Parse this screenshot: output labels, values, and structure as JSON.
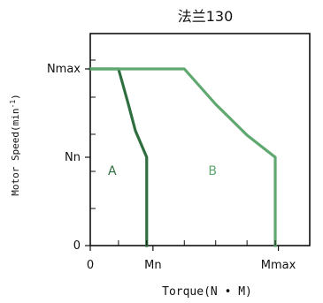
{
  "chart_data": {
    "type": "line",
    "title": "法兰130",
    "xlabel": "Torque(N • M)",
    "ylabel_parts": {
      "prefix": "Motor Speed(min",
      "superscript": "-1",
      "suffix": ")"
    },
    "x_ticks": [
      {
        "value": 0,
        "label": "0"
      },
      {
        "value": 1,
        "label": "Mn"
      },
      {
        "value": 3,
        "label": "Mmax"
      }
    ],
    "y_ticks": [
      {
        "value": 0,
        "label": "0"
      },
      {
        "value": 1,
        "label": "Nn"
      },
      {
        "value": 2,
        "label": "Nmax"
      }
    ],
    "xlim": [
      0,
      3.5
    ],
    "ylim": [
      0,
      2.4
    ],
    "series": [
      {
        "name": "A",
        "color": "#2f6f3f",
        "points": [
          [
            0,
            2
          ],
          [
            0.45,
            2
          ],
          [
            0.6,
            1.62
          ],
          [
            0.72,
            1.3
          ],
          [
            0.9,
            1.0
          ],
          [
            0.9,
            0
          ]
        ],
        "label_position": [
          0.35,
          0.8
        ]
      },
      {
        "name": "B",
        "color": "#5fa870",
        "points": [
          [
            0,
            2
          ],
          [
            1.5,
            2
          ],
          [
            2.0,
            1.6
          ],
          [
            2.5,
            1.25
          ],
          [
            2.95,
            1.0
          ],
          [
            2.95,
            0
          ]
        ],
        "label_position": [
          1.95,
          0.8
        ]
      }
    ],
    "grid": false,
    "legend": "none"
  }
}
